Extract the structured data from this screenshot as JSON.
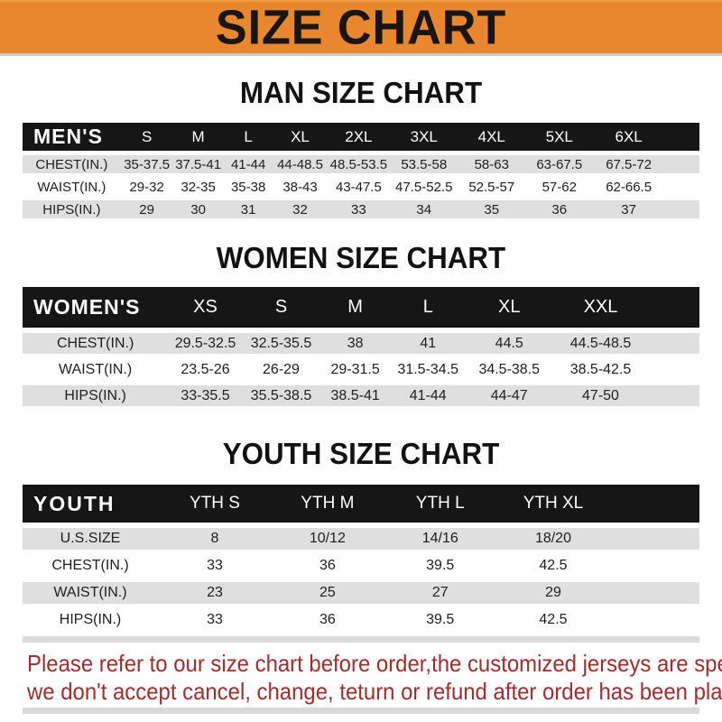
{
  "banner": {
    "title": "SIZE CHART"
  },
  "colors": {
    "banner_bg": "#E8872D",
    "header_bar_bg": "#161616",
    "row_alt_bg": "#DFDFDF",
    "note_text": "#A52C2C"
  },
  "sections": [
    {
      "heading": "MAN SIZE CHART",
      "table_label": "MEN'S",
      "columns": [
        "S",
        "M",
        "L",
        "XL",
        "2XL",
        "3XL",
        "4XL",
        "5XL",
        "6XL"
      ],
      "rows": [
        {
          "label": "CHEST(IN.)",
          "values": [
            "35-37.5",
            "37.5-41",
            "41-44",
            "44-48.5",
            "48.5-53.5",
            "53.5-58",
            "58-63",
            "63-67.5",
            "67.5-72"
          ]
        },
        {
          "label": "WAIST(IN.)",
          "values": [
            "29-32",
            "32-35",
            "35-38",
            "38-43",
            "43-47.5",
            "47.5-52.5",
            "52.5-57",
            "57-62",
            "62-66.5"
          ]
        },
        {
          "label": "HIPS(IN.)",
          "values": [
            "29",
            "30",
            "31",
            "32",
            "33",
            "34",
            "35",
            "36",
            "37"
          ]
        }
      ]
    },
    {
      "heading": "WOMEN SIZE CHART",
      "table_label": "WOMEN'S",
      "columns": [
        "XS",
        "S",
        "M",
        "L",
        "XL",
        "XXL"
      ],
      "rows": [
        {
          "label": "CHEST(IN.)",
          "values": [
            "29.5-32.5",
            "32.5-35.5",
            "38",
            "41",
            "44.5",
            "44.5-48.5"
          ]
        },
        {
          "label": "WAIST(IN.)",
          "values": [
            "23.5-26",
            "26-29",
            "29-31.5",
            "31.5-34.5",
            "34.5-38.5",
            "38.5-42.5"
          ]
        },
        {
          "label": "HIPS(IN.)",
          "values": [
            "33-35.5",
            "35.5-38.5",
            "38.5-41",
            "41-44",
            "44-47",
            "47-50"
          ]
        }
      ]
    },
    {
      "heading": "YOUTH SIZE CHART",
      "table_label": "YOUTH",
      "columns": [
        "YTH S",
        "YTH M",
        "YTH L",
        "YTH XL"
      ],
      "rows": [
        {
          "label": "U.S.SIZE",
          "values": [
            "8",
            "10/12",
            "14/16",
            "18/20"
          ]
        },
        {
          "label": "CHEST(IN.)",
          "values": [
            "33",
            "36",
            "39.5",
            "42.5"
          ]
        },
        {
          "label": "WAIST(IN.)",
          "values": [
            "23",
            "25",
            "27",
            "29"
          ]
        },
        {
          "label": "HIPS(IN.)",
          "values": [
            "33",
            "36",
            "39.5",
            "42.5"
          ]
        }
      ]
    }
  ],
  "note": {
    "line1": "Please refer to our size chart before order,the customized jerseys are special products,",
    "line2": "we don't accept cancel, change, teturn or refund after order has been placed!"
  }
}
